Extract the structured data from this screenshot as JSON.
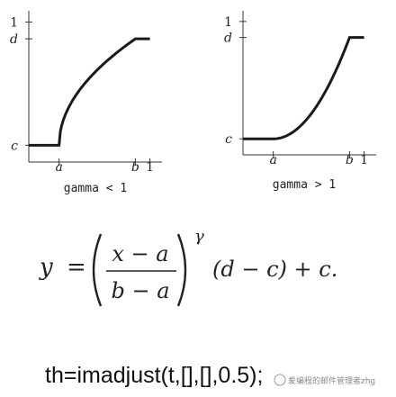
{
  "chart_data": [
    {
      "type": "line",
      "caption": "gamma < 1",
      "xticks": [
        {
          "label": "a",
          "value": 0.25
        },
        {
          "label": "b",
          "value": 0.88
        },
        {
          "label": "1",
          "value": 1.0
        }
      ],
      "yticks": [
        {
          "label": "1",
          "value": 1.0
        },
        {
          "label": "d",
          "value": 0.88
        },
        {
          "label": "c",
          "value": 0.12
        }
      ],
      "xlim": [
        0,
        1.1
      ],
      "ylim": [
        0,
        1.08
      ],
      "gamma": 0.5,
      "series": [
        {
          "x": [
            0,
            0.25,
            0.88,
            1.0
          ],
          "y": [
            0.12,
            0.12,
            0.88,
            0.88
          ]
        }
      ]
    },
    {
      "type": "line",
      "caption": "gamma > 1",
      "xticks": [
        {
          "label": "a",
          "value": 0.25
        },
        {
          "label": "b",
          "value": 0.88
        },
        {
          "label": "1",
          "value": 1.0
        }
      ],
      "yticks": [
        {
          "label": "1",
          "value": 1.0
        },
        {
          "label": "d",
          "value": 0.88
        },
        {
          "label": "c",
          "value": 0.12
        }
      ],
      "xlim": [
        0,
        1.1
      ],
      "ylim": [
        0,
        1.08
      ],
      "gamma": 2.0,
      "series": [
        {
          "x": [
            0,
            0.25,
            0.88,
            1.0
          ],
          "y": [
            0.12,
            0.12,
            0.88,
            0.88
          ]
        }
      ]
    }
  ],
  "equation": {
    "y": "y",
    "equals": "=",
    "numerator": "x − a",
    "denominator": "b − a",
    "exponent": "γ",
    "tail": "(d − c) + c."
  },
  "code_line": "th=imadjust(t,[],[],0.5);",
  "watermark": "爱编程的邮件管理者zhg",
  "colors": {
    "curve": "#1a1a1a",
    "axis": "#333333",
    "text": "#222222"
  }
}
